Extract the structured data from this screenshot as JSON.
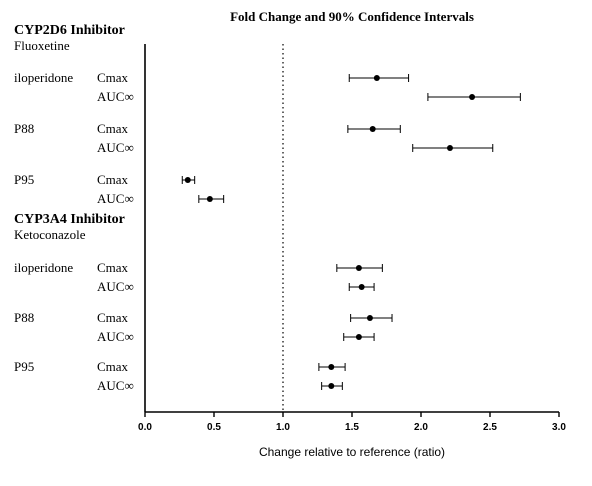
{
  "chart_data": {
    "type": "scatter",
    "title": "Fold  Change and 90% Confidence Intervals",
    "xlabel": "Change relative to reference (ratio)",
    "xlim": [
      0.0,
      3.0
    ],
    "x_ticks": [
      "0.0",
      "0.5",
      "1.0",
      "1.5",
      "2.0",
      "2.5",
      "3.0"
    ],
    "x_tick_values": [
      0.0,
      0.5,
      1.0,
      1.5,
      2.0,
      2.5,
      3.0
    ],
    "reference_line": 1.0,
    "groups": [
      {
        "title": "CYP2D6 Inhibitor",
        "subtitle": "Fluoxetine",
        "drugs": [
          {
            "name": "iloperidone",
            "points": [
              {
                "metric": "Cmax",
                "estimate": 1.68,
                "lower": 1.48,
                "upper": 1.91
              },
              {
                "metric": "AUC∞",
                "estimate": 2.37,
                "lower": 2.05,
                "upper": 2.72
              }
            ]
          },
          {
            "name": "P88",
            "points": [
              {
                "metric": "Cmax",
                "estimate": 1.65,
                "lower": 1.47,
                "upper": 1.85
              },
              {
                "metric": "AUC∞",
                "estimate": 2.21,
                "lower": 1.94,
                "upper": 2.52
              }
            ]
          },
          {
            "name": "P95",
            "points": [
              {
                "metric": "Cmax",
                "estimate": 0.31,
                "lower": 0.27,
                "upper": 0.36
              },
              {
                "metric": "AUC∞",
                "estimate": 0.47,
                "lower": 0.39,
                "upper": 0.57
              }
            ]
          }
        ]
      },
      {
        "title": "CYP3A4 Inhibitor",
        "subtitle": "Ketoconazole",
        "drugs": [
          {
            "name": "iloperidone",
            "points": [
              {
                "metric": "Cmax",
                "estimate": 1.55,
                "lower": 1.39,
                "upper": 1.72
              },
              {
                "metric": "AUC∞",
                "estimate": 1.57,
                "lower": 1.48,
                "upper": 1.66
              }
            ]
          },
          {
            "name": "P88",
            "points": [
              {
                "metric": "Cmax",
                "estimate": 1.63,
                "lower": 1.49,
                "upper": 1.79
              },
              {
                "metric": "AUC∞",
                "estimate": 1.55,
                "lower": 1.44,
                "upper": 1.66
              }
            ]
          },
          {
            "name": "P95",
            "points": [
              {
                "metric": "Cmax",
                "estimate": 1.35,
                "lower": 1.26,
                "upper": 1.45
              },
              {
                "metric": "AUC∞",
                "estimate": 1.35,
                "lower": 1.28,
                "upper": 1.43
              }
            ]
          }
        ]
      }
    ]
  },
  "colors": {
    "marker": "#000000",
    "axis": "#000000",
    "reference_line": "#333333",
    "background": "#ffffff"
  }
}
